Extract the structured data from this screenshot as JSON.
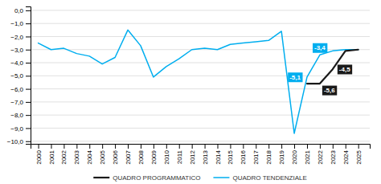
{
  "chart_data": {
    "type": "line",
    "x": [
      2000,
      2001,
      2002,
      2003,
      2004,
      2005,
      2006,
      2007,
      2008,
      2009,
      2010,
      2011,
      2012,
      2013,
      2014,
      2015,
      2016,
      2017,
      2018,
      2019,
      2020,
      2021,
      2022,
      2023,
      2024,
      2025
    ],
    "series": [
      {
        "name": "QUADRO TENDENZIALE",
        "color": "#00aeef",
        "values": [
          -2.5,
          -3.0,
          -2.9,
          -3.3,
          -3.5,
          -4.1,
          -3.6,
          -1.5,
          -2.7,
          -5.1,
          -4.3,
          -3.7,
          -3.0,
          -2.9,
          -3.0,
          -2.6,
          -2.5,
          -2.4,
          -2.3,
          -1.6,
          -9.4,
          -5.1,
          -3.4,
          -3.1,
          -3.0,
          -3.0
        ]
      },
      {
        "name": "QUADRO PROGRAMMATICO",
        "color": "#1a1a1a",
        "values": [
          null,
          null,
          null,
          null,
          null,
          null,
          null,
          null,
          null,
          null,
          null,
          null,
          null,
          null,
          null,
          null,
          null,
          null,
          null,
          null,
          null,
          -5.6,
          -5.6,
          -4.5,
          -3.1,
          -3.0
        ]
      }
    ],
    "xlim": [
      1999.4,
      2025.9
    ],
    "xticks": [
      2000,
      2001,
      2002,
      2003,
      2004,
      2005,
      2006,
      2007,
      2008,
      2009,
      2010,
      2011,
      2012,
      2013,
      2014,
      2015,
      2016,
      2017,
      2018,
      2019,
      2020,
      2021,
      2022,
      2023,
      2024,
      2025
    ],
    "ylim": [
      -10.2,
      0.3
    ],
    "yticks": [
      {
        "value": 0.0,
        "label": "0,0"
      },
      {
        "value": -1.0,
        "label": "−1,0"
      },
      {
        "value": -2.0,
        "label": "−2,0"
      },
      {
        "value": -3.0,
        "label": "−3,0"
      },
      {
        "value": -4.0,
        "label": "−4,0"
      },
      {
        "value": -5.0,
        "label": "−5,0"
      },
      {
        "value": -6.0,
        "label": "−6,0"
      },
      {
        "value": -7.0,
        "label": "−7,0"
      },
      {
        "value": -8.0,
        "label": "−8,0"
      },
      {
        "value": -9.0,
        "label": "−9,0"
      },
      {
        "value": -10.0,
        "label": "−10,0"
      }
    ],
    "grid": true,
    "legend": "bottom",
    "annotations": [
      {
        "text": "-5,1",
        "x": 2021,
        "y": -5.1,
        "color": "#00aeef"
      },
      {
        "text": "-3,4",
        "x": 2022,
        "y": -3.4,
        "color": "#00aeef"
      },
      {
        "text": "-5,6",
        "x": 2022,
        "y": -5.6,
        "color": "#1a1a1a"
      },
      {
        "text": "-4,5",
        "x": 2023,
        "y": -4.5,
        "color": "#1a1a1a"
      }
    ]
  }
}
